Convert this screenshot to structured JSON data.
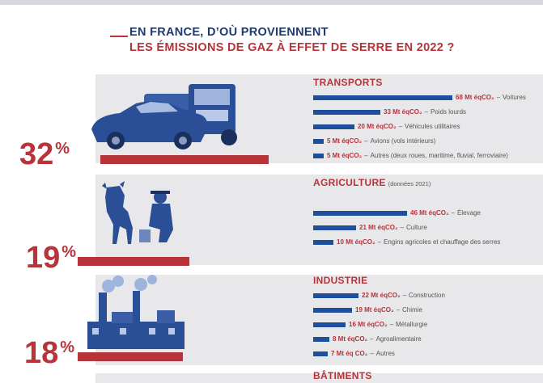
{
  "title": {
    "line1": "EN FRANCE, D’OÙ PROVIENNENT",
    "line2": "LES ÉMISSIONS DE GAZ À EFFET DE SERRE EN 2022 ?"
  },
  "colors": {
    "navy": "#1f3a6e",
    "red": "#b8333a",
    "bar_blue": "#1f4e9a",
    "panel_grey": "#e8e8ea"
  },
  "max_value": 68,
  "sections": [
    {
      "name": "TRANSPORTS",
      "note": "",
      "percent": "32",
      "percent_sign": "%",
      "illustration": "car-and-truck-illustration",
      "items": [
        {
          "value": 68,
          "amount": "68 Mt éqCO₂",
          "category": "Voitures"
        },
        {
          "value": 33,
          "amount": "33 Mt éqCO₂",
          "category": "Poids lourds"
        },
        {
          "value": 20,
          "amount": "20 Mt éqCO₂",
          "category": "Véhicules utilitaires"
        },
        {
          "value": 5,
          "amount": "5 Mt éqCO₂",
          "category": "Avions (vols intérieurs)"
        },
        {
          "value": 5,
          "amount": "5 Mt éqCO₂",
          "category": "Autres (deux roues, maritime, fluvial, ferroviaire)"
        }
      ]
    },
    {
      "name": "AGRICULTURE",
      "note": "(données 2021)",
      "percent": "19",
      "percent_sign": "%",
      "illustration": "cow-and-farmer-illustration",
      "items": [
        {
          "value": 46,
          "amount": "46 Mt éqCO₂",
          "category": "Élevage"
        },
        {
          "value": 21,
          "amount": "21 Mt éqCO₂",
          "category": "Culture"
        },
        {
          "value": 10,
          "amount": "10 Mt éqCO₂",
          "category": "Engins agricoles et chauffage des serres"
        }
      ]
    },
    {
      "name": "INDUSTRIE",
      "note": "",
      "percent": "18",
      "percent_sign": "%",
      "illustration": "factory-illustration",
      "items": [
        {
          "value": 22,
          "amount": "22 Mt éqCO₂",
          "category": "Construction"
        },
        {
          "value": 19,
          "amount": "19 Mt éqCO₂",
          "category": "Chimie"
        },
        {
          "value": 16,
          "amount": "16 Mt éqCO₂",
          "category": "Métallurgie"
        },
        {
          "value": 8,
          "amount": "8 Mt éqCO₂",
          "category": "Agroalimentaire"
        },
        {
          "value": 7,
          "amount": "7 Mt éq CO₂",
          "category": "Autres"
        }
      ]
    },
    {
      "name": "BÂTIMENTS",
      "note": "",
      "items": []
    }
  ]
}
